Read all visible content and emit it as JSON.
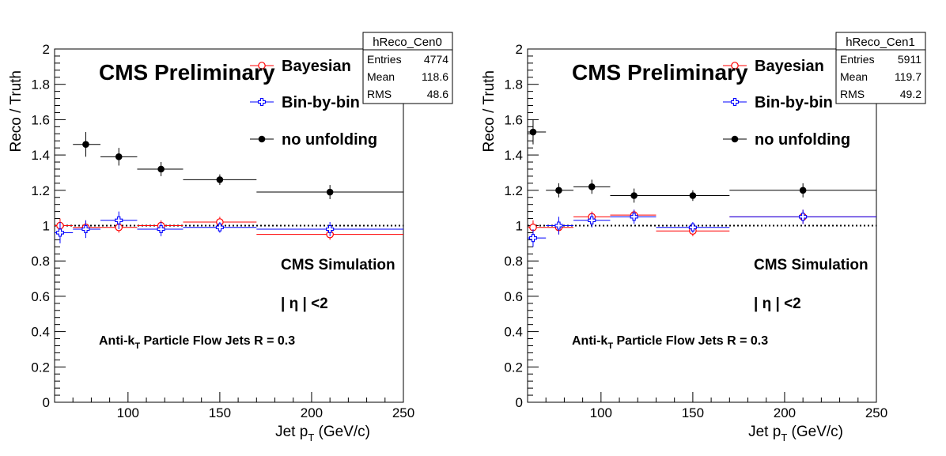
{
  "chart_data": [
    {
      "type": "scatter",
      "stats_box": {
        "name": "hReco_Cen0",
        "entries": "4774",
        "mean": "118.6",
        "rms": "48.6",
        "labels": {
          "entries": "Entries",
          "mean": "Mean",
          "rms": "RMS"
        }
      },
      "title": "CMS Preliminary",
      "xlabel": "Jet p",
      "xlabel_sub": "T",
      "xlabel_unit": " (GeV/c)",
      "ylabel": "Reco / Truth",
      "xlim": [
        60,
        250
      ],
      "ylim": [
        0,
        2
      ],
      "x_ticks": [
        "100",
        "150",
        "200",
        "250"
      ],
      "y_ticks": [
        "0",
        "0.2",
        "0.4",
        "0.6",
        "0.8",
        "1",
        "1.2",
        "1.4",
        "1.6",
        "1.8",
        "2"
      ],
      "reference_line": 1.0,
      "annotations": {
        "simulation": "CMS Simulation",
        "eta_cut": "| η | <2",
        "algo_prefix": "Anti-k",
        "algo_sub": "T",
        "algo_rest": " Particle Flow Jets   R = 0.3"
      },
      "series": [
        {
          "name": "Bayesian",
          "color": "#ff0000",
          "marker": "open-circle",
          "points": [
            {
              "x": 63,
              "xlo": 60,
              "xhi": 70,
              "y": 1.0,
              "err": 0.04
            },
            {
              "x": 77,
              "xlo": 70,
              "xhi": 85,
              "y": 0.99,
              "err": 0.04
            },
            {
              "x": 95,
              "xlo": 85,
              "xhi": 105,
              "y": 0.99,
              "err": 0.03
            },
            {
              "x": 118,
              "xlo": 105,
              "xhi": 130,
              "y": 1.0,
              "err": 0.03
            },
            {
              "x": 150,
              "xlo": 130,
              "xhi": 170,
              "y": 1.02,
              "err": 0.03
            },
            {
              "x": 210,
              "xlo": 170,
              "xhi": 250,
              "y": 0.95,
              "err": 0.03
            }
          ]
        },
        {
          "name": "Bin-by-bin",
          "color": "#0000ff",
          "marker": "open-cross",
          "points": [
            {
              "x": 63,
              "xlo": 60,
              "xhi": 70,
              "y": 0.96,
              "err": 0.06
            },
            {
              "x": 77,
              "xlo": 70,
              "xhi": 85,
              "y": 0.98,
              "err": 0.05
            },
            {
              "x": 95,
              "xlo": 85,
              "xhi": 105,
              "y": 1.03,
              "err": 0.05
            },
            {
              "x": 118,
              "xlo": 105,
              "xhi": 130,
              "y": 0.98,
              "err": 0.04
            },
            {
              "x": 150,
              "xlo": 130,
              "xhi": 170,
              "y": 0.99,
              "err": 0.03
            },
            {
              "x": 210,
              "xlo": 170,
              "xhi": 250,
              "y": 0.98,
              "err": 0.04
            }
          ]
        },
        {
          "name": "no unfolding",
          "color": "#000000",
          "marker": "filled-circle",
          "points": [
            {
              "x": 77,
              "xlo": 70,
              "xhi": 85,
              "y": 1.46,
              "err": 0.07
            },
            {
              "x": 95,
              "xlo": 85,
              "xhi": 105,
              "y": 1.39,
              "err": 0.05
            },
            {
              "x": 118,
              "xlo": 105,
              "xhi": 130,
              "y": 1.32,
              "err": 0.04
            },
            {
              "x": 150,
              "xlo": 130,
              "xhi": 170,
              "y": 1.26,
              "err": 0.03
            },
            {
              "x": 210,
              "xlo": 170,
              "xhi": 250,
              "y": 1.19,
              "err": 0.04
            }
          ]
        }
      ]
    },
    {
      "type": "scatter",
      "stats_box": {
        "name": "hReco_Cen1",
        "entries": "5911",
        "mean": "119.7",
        "rms": "49.2",
        "labels": {
          "entries": "Entries",
          "mean": "Mean",
          "rms": "RMS"
        }
      },
      "title": "CMS Preliminary",
      "xlabel": "Jet p",
      "xlabel_sub": "T",
      "xlabel_unit": " (GeV/c)",
      "ylabel": "Reco / Truth",
      "xlim": [
        60,
        250
      ],
      "ylim": [
        0,
        2
      ],
      "x_ticks": [
        "100",
        "150",
        "200",
        "250"
      ],
      "y_ticks": [
        "0",
        "0.2",
        "0.4",
        "0.6",
        "0.8",
        "1",
        "1.2",
        "1.4",
        "1.6",
        "1.8",
        "2"
      ],
      "reference_line": 1.0,
      "annotations": {
        "simulation": "CMS Simulation",
        "eta_cut": "| η | <2",
        "algo_prefix": "Anti-k",
        "algo_sub": "T",
        "algo_rest": " Particle Flow Jets   R = 0.3"
      },
      "series": [
        {
          "name": "Bayesian",
          "color": "#ff0000",
          "marker": "open-circle",
          "points": [
            {
              "x": 63,
              "xlo": 60,
              "xhi": 70,
              "y": 0.99,
              "err": 0.04
            },
            {
              "x": 77,
              "xlo": 70,
              "xhi": 85,
              "y": 0.99,
              "err": 0.04
            },
            {
              "x": 95,
              "xlo": 85,
              "xhi": 105,
              "y": 1.05,
              "err": 0.03
            },
            {
              "x": 118,
              "xlo": 105,
              "xhi": 130,
              "y": 1.06,
              "err": 0.03
            },
            {
              "x": 150,
              "xlo": 130,
              "xhi": 170,
              "y": 0.97,
              "err": 0.03
            },
            {
              "x": 210,
              "xlo": 170,
              "xhi": 250,
              "y": 1.05,
              "err": 0.04
            }
          ]
        },
        {
          "name": "Bin-by-bin",
          "color": "#0000ff",
          "marker": "open-cross",
          "points": [
            {
              "x": 63,
              "xlo": 60,
              "xhi": 70,
              "y": 0.93,
              "err": 0.05
            },
            {
              "x": 77,
              "xlo": 70,
              "xhi": 85,
              "y": 1.0,
              "err": 0.05
            },
            {
              "x": 95,
              "xlo": 85,
              "xhi": 105,
              "y": 1.03,
              "err": 0.04
            },
            {
              "x": 118,
              "xlo": 105,
              "xhi": 130,
              "y": 1.05,
              "err": 0.04
            },
            {
              "x": 150,
              "xlo": 130,
              "xhi": 170,
              "y": 0.99,
              "err": 0.03
            },
            {
              "x": 210,
              "xlo": 170,
              "xhi": 250,
              "y": 1.05,
              "err": 0.04
            }
          ]
        },
        {
          "name": "no unfolding",
          "color": "#000000",
          "marker": "filled-circle",
          "points": [
            {
              "x": 63,
              "xlo": 60,
              "xhi": 70,
              "y": 1.53,
              "err": 0.07
            },
            {
              "x": 77,
              "xlo": 70,
              "xhi": 85,
              "y": 1.2,
              "err": 0.04
            },
            {
              "x": 95,
              "xlo": 85,
              "xhi": 105,
              "y": 1.22,
              "err": 0.04
            },
            {
              "x": 118,
              "xlo": 105,
              "xhi": 130,
              "y": 1.17,
              "err": 0.04
            },
            {
              "x": 150,
              "xlo": 130,
              "xhi": 170,
              "y": 1.17,
              "err": 0.03
            },
            {
              "x": 210,
              "xlo": 170,
              "xhi": 250,
              "y": 1.2,
              "err": 0.04
            }
          ]
        }
      ]
    }
  ]
}
